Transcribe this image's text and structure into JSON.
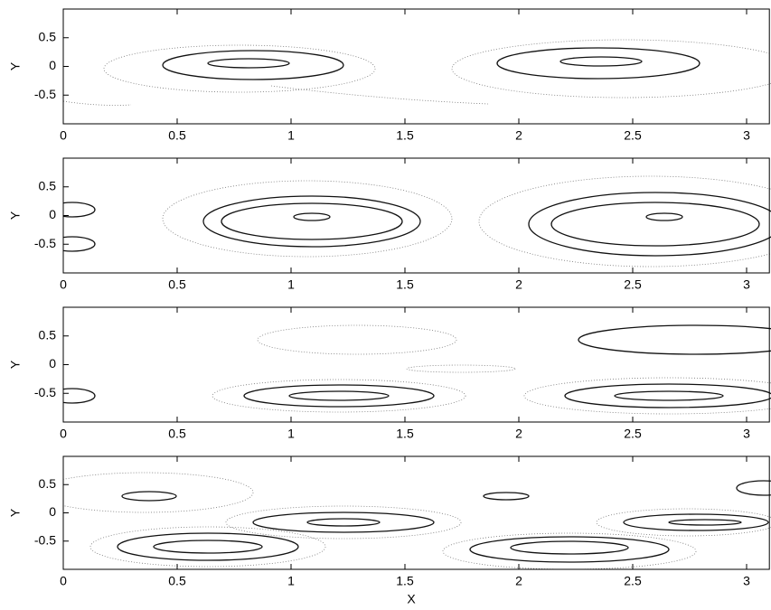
{
  "chart_data": [
    {
      "type": "contour",
      "ylabel": "Y",
      "xlim": [
        0,
        3.1
      ],
      "ylim": [
        -1,
        1
      ],
      "xticks": [
        0,
        0.5,
        1,
        1.5,
        2,
        2.5,
        3
      ],
      "yticks": [
        -0.5,
        0,
        0.5
      ]
    },
    {
      "type": "contour",
      "ylabel": "Y",
      "xlim": [
        0,
        3.1
      ],
      "ylim": [
        -1,
        1
      ],
      "xticks": [
        0,
        0.5,
        1,
        1.5,
        2,
        2.5,
        3
      ],
      "yticks": [
        -0.5,
        0,
        0.5
      ]
    },
    {
      "type": "contour",
      "ylabel": "Y",
      "xlim": [
        0,
        3.1
      ],
      "ylim": [
        -1,
        1
      ],
      "xticks": [
        0,
        0.5,
        1,
        1.5,
        2,
        2.5,
        3
      ],
      "yticks": [
        -0.5,
        0,
        0.5
      ]
    },
    {
      "type": "contour",
      "ylabel": "Y",
      "xlabel": "X",
      "xlim": [
        0,
        3.1
      ],
      "ylim": [
        -1,
        1
      ],
      "xticks": [
        0,
        0.5,
        1,
        1.5,
        2,
        2.5,
        3
      ],
      "yticks": [
        -0.5,
        0,
        0.5
      ]
    }
  ]
}
